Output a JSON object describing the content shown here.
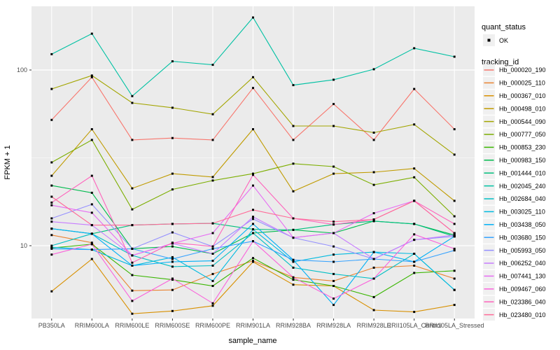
{
  "panel": {
    "bg_color": "#EBEBEB",
    "grid_color": "#FFFFFF",
    "tick_color": "#333333",
    "point_color": "#000000",
    "legend_key_bg": "#F0F0F0"
  },
  "legend": {
    "quant_status_title": "quant_status",
    "ok_label": "OK",
    "tracking_id_title": "tracking_id"
  },
  "chart_data": {
    "type": "line",
    "title": "",
    "xlabel": "sample_name",
    "ylabel": "FPKM + 1",
    "y_scale": "log10",
    "y_ticks": [
      10,
      100
    ],
    "y_domain": [
      3.85,
      228
    ],
    "grid": true,
    "legend_position": "right",
    "point_marker": "small black square (quant_status = OK)",
    "x_categories": [
      "PB350LA",
      "RRIM600LA",
      "RRIM600LE",
      "RRIM600SE",
      "RRIM600PE",
      "RRIM901LA",
      "RRIM928BA",
      "RRIM928LA",
      "RRIM928LE",
      "RRII105LA_Control",
      "RRII105LA_Stressed"
    ],
    "series": [
      {
        "name": "Hb_000020_190",
        "color": "#F8766D",
        "values": [
          52,
          91,
          40,
          41,
          40,
          79,
          40,
          64,
          40,
          78,
          46
        ]
      },
      {
        "name": "Hb_000025_110",
        "color": "#EA8331",
        "values": [
          11.5,
          10.4,
          5.55,
          5.6,
          6.9,
          8.2,
          6.6,
          6.3,
          7.5,
          7.7,
          6.5
        ]
      },
      {
        "name": "Hb_000367_010",
        "color": "#D89000",
        "values": [
          5.5,
          8.4,
          4.1,
          4.25,
          4.55,
          8.1,
          6.0,
          5.9,
          4.3,
          4.2,
          4.6
        ]
      },
      {
        "name": "Hb_000498_010",
        "color": "#C09B00",
        "values": [
          25,
          46,
          21.2,
          25.7,
          24.6,
          46,
          20.4,
          25.7,
          26.2,
          27.5,
          18
        ]
      },
      {
        "name": "Hb_000544_090",
        "color": "#A3A500",
        "values": [
          78,
          93,
          65,
          61,
          56,
          91,
          48,
          48,
          44,
          49,
          33
        ]
      },
      {
        "name": "Hb_000777_050",
        "color": "#7CAE00",
        "values": [
          29.8,
          40,
          16.1,
          20.9,
          23.5,
          25.7,
          29.3,
          28.2,
          22.2,
          24.5,
          14.7
        ]
      },
      {
        "name": "Hb_000853_230",
        "color": "#39B600",
        "values": [
          9.7,
          10.2,
          6.8,
          6.4,
          5.9,
          8.5,
          6.4,
          5.9,
          5.1,
          7.0,
          7.2
        ]
      },
      {
        "name": "Hb_000983_150",
        "color": "#00BB4E",
        "values": [
          22,
          20,
          9.6,
          9.9,
          9.0,
          11.8,
          12.3,
          11.8,
          13.8,
          13.3,
          11.5
        ]
      },
      {
        "name": "Hb_001444_010",
        "color": "#00BF7D",
        "values": [
          12.5,
          11.7,
          13.1,
          13.3,
          13.4,
          12.4,
          12.3,
          13.2,
          13.8,
          13.3,
          11.3
        ]
      },
      {
        "name": "Hb_002045_240",
        "color": "#00C1A3",
        "values": [
          123,
          161,
          71,
          112,
          107,
          199,
          82,
          88,
          101,
          133,
          119
        ]
      },
      {
        "name": "Hb_002684_040",
        "color": "#00BFC4",
        "values": [
          10.0,
          11.7,
          8.8,
          7.6,
          7.7,
          11.8,
          7.5,
          6.9,
          6.5,
          9.0,
          5.6
        ]
      },
      {
        "name": "Hb_003025_110",
        "color": "#00BAE0",
        "values": [
          9.8,
          9.5,
          7.7,
          8.6,
          6.3,
          12.4,
          8.1,
          8.9,
          9.2,
          9.0,
          5.6
        ]
      },
      {
        "name": "Hb_003438_050",
        "color": "#00B0F6",
        "values": [
          12.5,
          11.7,
          7.7,
          8.1,
          8.2,
          13.3,
          8.3,
          4.6,
          9.2,
          8.1,
          11.3
        ]
      },
      {
        "name": "Hb_003680_150",
        "color": "#35A2FF",
        "values": [
          9.6,
          9.5,
          9.6,
          8.4,
          9.6,
          10.6,
          8.3,
          8.1,
          8.4,
          8.1,
          9.4
        ]
      },
      {
        "name": "Hb_005993_050",
        "color": "#9590FF",
        "values": [
          14.3,
          17.2,
          9.6,
          11.9,
          9.9,
          14.2,
          11.1,
          9.9,
          8.4,
          10.8,
          11.3
        ]
      },
      {
        "name": "Hb_006252_040",
        "color": "#C77CFF",
        "values": [
          13.7,
          13.1,
          8.8,
          10.3,
          9.0,
          14.6,
          11.1,
          11.8,
          8.4,
          10.8,
          11.5
        ]
      },
      {
        "name": "Hb_007441_130",
        "color": "#E76BF3",
        "values": [
          17.0,
          15.4,
          8.8,
          10.3,
          11.8,
          22.0,
          11.1,
          11.8,
          15.3,
          18.0,
          11.8
        ]
      },
      {
        "name": "Hb_009467_060",
        "color": "#FA62DB",
        "values": [
          8.9,
          10.2,
          4.85,
          6.5,
          4.7,
          10.6,
          6.6,
          5.0,
          6.5,
          11.6,
          9.6
        ]
      },
      {
        "name": "Hb_023386_040",
        "color": "#FF62BC",
        "values": [
          17.6,
          25.0,
          8.0,
          10.4,
          9.9,
          25.3,
          14.3,
          13.2,
          14.1,
          18.0,
          13.3
        ]
      },
      {
        "name": "Hb_023480_010",
        "color": "#FF6A98",
        "values": [
          19.0,
          13.1,
          13.1,
          13.3,
          13.4,
          16.0,
          14.3,
          13.7,
          14.1,
          18.0,
          11.8
        ]
      }
    ]
  }
}
